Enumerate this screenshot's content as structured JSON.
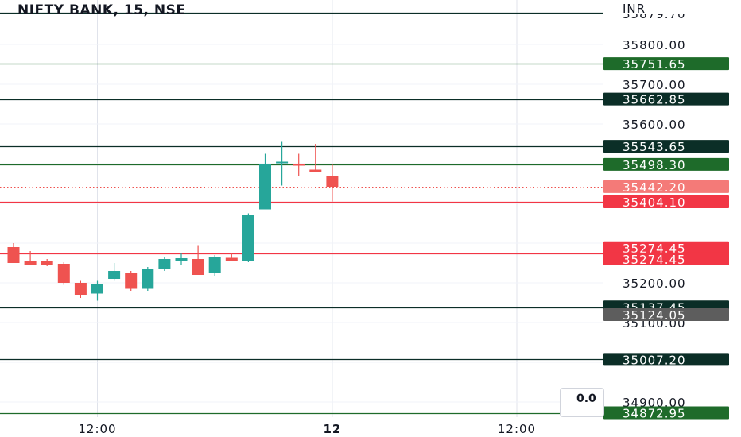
{
  "header": {
    "title": "NIFTY BANK, 15, NSE"
  },
  "currency": "INR",
  "top_partial_label": "35879.70",
  "overlay_box_text": "0.0",
  "colors": {
    "up": "#26a69a",
    "down": "#ef5350",
    "dark_level": "#0b2e27",
    "green_level": "#1e6b2a",
    "red_level": "#f23645",
    "gray_badge": "#5d5d5d",
    "grid": "#e0e3eb"
  },
  "chart_data": {
    "type": "candlestick",
    "title": "NIFTY BANK, 15, NSE",
    "ylim": [
      34850,
      35880
    ],
    "price_ticks": [
      {
        "value": 35800,
        "label": "35800.00"
      },
      {
        "value": 35700,
        "label": "35700.00"
      },
      {
        "value": 35600,
        "label": "35600.00"
      },
      {
        "value": 35200,
        "label": "35200.00"
      },
      {
        "value": 35100,
        "label": "35100.00"
      },
      {
        "value": 34900,
        "label": "34900.00"
      }
    ],
    "time_ticks": [
      {
        "bar": 5,
        "label": "12:00"
      },
      {
        "bar": 19,
        "label": "12"
      },
      {
        "bar": 30,
        "label": "12:00"
      }
    ],
    "candles": [
      {
        "o": 35290,
        "h": 35300,
        "l": 35250,
        "c": 35250
      },
      {
        "o": 35255,
        "h": 35280,
        "l": 35245,
        "c": 35245
      },
      {
        "o": 35255,
        "h": 35260,
        "l": 35242,
        "c": 35245
      },
      {
        "o": 35248,
        "h": 35252,
        "l": 35195,
        "c": 35200
      },
      {
        "o": 35200,
        "h": 35205,
        "l": 35162,
        "c": 35170
      },
      {
        "o": 35173,
        "h": 35205,
        "l": 35155,
        "c": 35198
      },
      {
        "o": 35210,
        "h": 35250,
        "l": 35205,
        "c": 35230
      },
      {
        "o": 35225,
        "h": 35230,
        "l": 35180,
        "c": 35185
      },
      {
        "o": 35185,
        "h": 35240,
        "l": 35180,
        "c": 35235
      },
      {
        "o": 35235,
        "h": 35265,
        "l": 35230,
        "c": 35260
      },
      {
        "o": 35255,
        "h": 35275,
        "l": 35245,
        "c": 35262
      },
      {
        "o": 35260,
        "h": 35295,
        "l": 35220,
        "c": 35220
      },
      {
        "o": 35225,
        "h": 35270,
        "l": 35218,
        "c": 35265
      },
      {
        "o": 35263,
        "h": 35275,
        "l": 35255,
        "c": 35255
      },
      {
        "o": 35255,
        "h": 35375,
        "l": 35252,
        "c": 35370
      },
      {
        "o": 35385,
        "h": 35525,
        "l": 35385,
        "c": 35500
      },
      {
        "o": 35505,
        "h": 35555,
        "l": 35445,
        "c": 35505
      },
      {
        "o": 35500,
        "h": 35525,
        "l": 35470,
        "c": 35495
      },
      {
        "o": 35485,
        "h": 35550,
        "l": 35478,
        "c": 35478
      },
      {
        "o": 35470,
        "h": 35500,
        "l": 35405,
        "c": 35442
      }
    ],
    "levels": [
      {
        "value": 35879.7,
        "label": "35879.70",
        "kind": "dark",
        "line": true
      },
      {
        "value": 35751.65,
        "label": "35751.65",
        "kind": "green",
        "line": true
      },
      {
        "value": 35662.85,
        "label": "35662.85",
        "kind": "dark",
        "line": true
      },
      {
        "value": 35543.65,
        "label": "35543.65",
        "kind": "dark",
        "line": true
      },
      {
        "value": 35498.3,
        "label": "35498.30",
        "kind": "green",
        "line": true
      },
      {
        "value": 35442.2,
        "label": "35442.20",
        "kind": "current",
        "line": "dotted"
      },
      {
        "value": 35404.1,
        "label": "35404.10",
        "kind": "red",
        "line": true
      },
      {
        "value": 35274.45,
        "label": "35274.45",
        "kind": "red",
        "line": false
      },
      {
        "value": 35274.45,
        "label": "35274.45",
        "kind": "red",
        "line": true
      },
      {
        "value": 35137.45,
        "label": "35137.45",
        "kind": "dark",
        "line": true
      },
      {
        "value": 35124.05,
        "label": "35124.05",
        "kind": "gray",
        "line": false
      },
      {
        "value": 35007.2,
        "label": "35007.20",
        "kind": "dark",
        "line": true
      },
      {
        "value": 34872.95,
        "label": "34872.95",
        "kind": "green",
        "line": true
      }
    ]
  }
}
